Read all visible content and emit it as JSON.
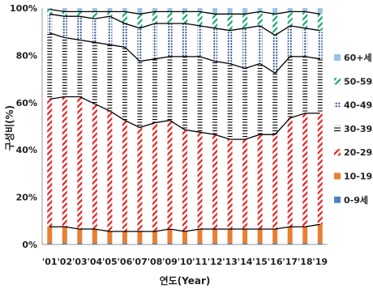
{
  "chart_data": {
    "type": "bar",
    "stacked": true,
    "normalized_percent": true,
    "categories": [
      "'01",
      "'02",
      "'03",
      "'04",
      "'05",
      "'06",
      "'07",
      "'08",
      "'09",
      "'10",
      "'11",
      "'12",
      "'13",
      "'14",
      "'15",
      "'16",
      "'17",
      "'18",
      "'19"
    ],
    "xlabel": "연도(Year)",
    "ylabel": "구성비(%)",
    "title": "",
    "ylim": [
      0,
      100
    ],
    "y_ticks": [
      "0%",
      "20%",
      "40%",
      "60%",
      "80%",
      "100%"
    ],
    "grid": false,
    "legend_position": "right",
    "series": [
      {
        "name": "0-9세",
        "color": "#4f81bd",
        "pattern": "solid",
        "values": [
          0.5,
          0.5,
          0.5,
          0.5,
          0.5,
          0.5,
          0.5,
          0.5,
          0.5,
          0.5,
          0.5,
          0.5,
          0.5,
          0.5,
          0.5,
          0.5,
          0.5,
          0.5,
          0.5
        ]
      },
      {
        "name": "10-19세",
        "color": "#e97f32",
        "pattern": "solid",
        "values": [
          7,
          7,
          6,
          6,
          5,
          5,
          5,
          5,
          6,
          5,
          6,
          6,
          6,
          6,
          6,
          6,
          7,
          7,
          8
        ]
      },
      {
        "name": "20-29세",
        "color": "#e8221f",
        "pattern": "diagonal",
        "values": [
          54,
          55,
          56,
          53,
          51,
          47,
          44,
          46,
          46,
          43,
          41,
          40,
          38,
          38,
          40,
          40,
          46,
          48,
          47
        ]
      },
      {
        "name": "30-39세",
        "color": "#000000",
        "pattern": "horizontal",
        "values": [
          28,
          25,
          24,
          26,
          28,
          31,
          28,
          27,
          27,
          31,
          32,
          31,
          32,
          30,
          30,
          26,
          26,
          24,
          23
        ]
      },
      {
        "name": "40-49세",
        "color": "#2e4f8f",
        "pattern": "dots",
        "values": [
          8,
          9,
          10,
          10,
          12,
          10,
          14,
          15,
          14,
          14,
          13,
          14,
          14,
          17,
          16,
          16,
          13,
          12,
          12
        ]
      },
      {
        "name": "50-59세",
        "color": "#17a86c",
        "pattern": "diagonal",
        "values": [
          2,
          2,
          2,
          3,
          2,
          5,
          6,
          5,
          5,
          5,
          6,
          6,
          7,
          6,
          6,
          9,
          6,
          7,
          7
        ]
      },
      {
        "name": "60+세",
        "color": "#9bc2e6",
        "pattern": "solid",
        "values": [
          0.5,
          1.5,
          1.5,
          1.5,
          1.5,
          1.5,
          2.5,
          1.5,
          1.5,
          1.5,
          1.5,
          2.5,
          2.5,
          2.5,
          1.5,
          2.5,
          1.5,
          1.5,
          2.5
        ]
      }
    ]
  }
}
